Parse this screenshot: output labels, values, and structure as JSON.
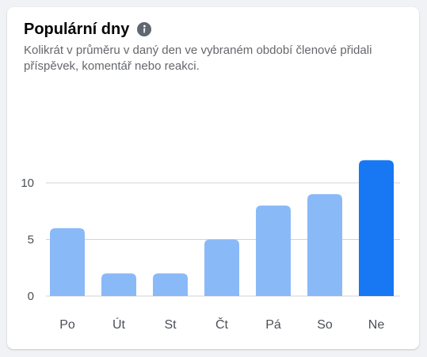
{
  "card": {
    "title": "Populární dny",
    "info_icon": "info-circle-icon",
    "description": "Kolikrát v průměru v daný den ve vybraném období členové přidali příspěvek, komentář nebo reakci."
  },
  "colors": {
    "bar_default": "#8ab9f8",
    "bar_highlight": "#1877f2",
    "gridline": "#d0d3d8",
    "axis_text": "#4b4f56"
  },
  "chart_data": {
    "type": "bar",
    "title": "",
    "xlabel": "",
    "ylabel": "",
    "categories": [
      "Po",
      "Út",
      "St",
      "Čt",
      "Pá",
      "So",
      "Ne"
    ],
    "values": [
      6,
      2,
      2,
      5,
      8,
      9,
      12
    ],
    "highlight_index": 6,
    "yticks": [
      0,
      5,
      10
    ],
    "ylim": [
      0,
      12
    ],
    "grid": true,
    "legend": "none"
  }
}
